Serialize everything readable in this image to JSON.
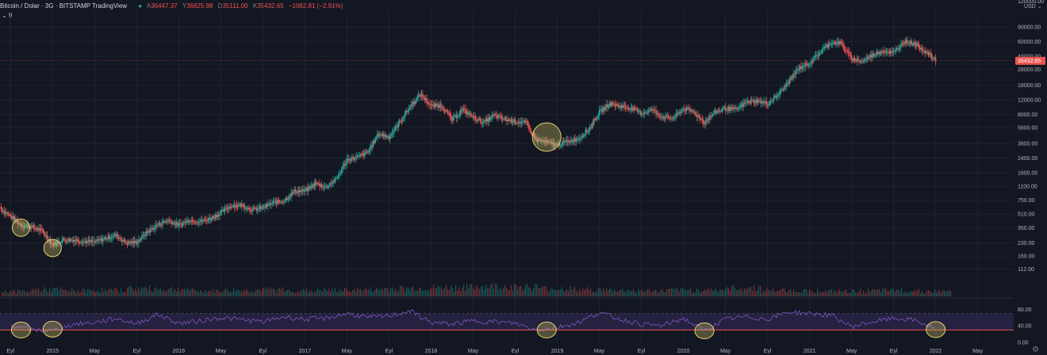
{
  "header": {
    "symbol": "Bitcoin / Dolar",
    "interval": "3G",
    "exchange": "BITSTAMP",
    "source": "TradingView",
    "open_label": "A",
    "open": "36447.37",
    "high_label": "Y",
    "high": "36825.98",
    "low_label": "D",
    "low": "35111.00",
    "close_label": "K",
    "close": "35432.65",
    "change": "−1062.81 (−2.91%)",
    "indicator_toggle": "⌄ 9"
  },
  "price_axis": {
    "scale": "log",
    "currency": "USD ⌄",
    "top_label": "120000.00",
    "ticks": [
      "90000.00",
      "60000.00",
      "40000.00",
      "28000.00",
      "18000.00",
      "12000.00",
      "8000.00",
      "5600.00",
      "3600.00",
      "2400.00",
      "1600.00",
      "1100.00",
      "750.00",
      "510.00",
      "350.00",
      "230.00",
      "160.00",
      "112.00"
    ],
    "last_price": "35432.65"
  },
  "rsi_axis": {
    "ticks": [
      "80.00",
      "40.00",
      "0.00"
    ],
    "overbought": 70,
    "oversold": 30
  },
  "time_axis": [
    "Eyl",
    "2015",
    "May",
    "Eyl",
    "2016",
    "May",
    "Eyl",
    "2017",
    "May",
    "Eyl",
    "2018",
    "May",
    "Eyl",
    "2019",
    "May",
    "Eyl",
    "2020",
    "May",
    "Eyl",
    "2021",
    "May",
    "Eyl",
    "2022",
    "May"
  ],
  "colors": {
    "background": "#131722",
    "up": "#26a69a",
    "down": "#ef5350",
    "grid": "#1f2330",
    "rsi_line": "#7e57c2",
    "rsi_band": "#2a2448",
    "rsi_level": "#ef5350",
    "highlight": "#e6d36a",
    "last_price_badge": "#ef5350"
  },
  "chart_data": {
    "type": "line",
    "title": "Bitcoin / Dolar",
    "xlabel": "",
    "ylabel": "USD",
    "y_scale": "log",
    "ylim": [
      85,
      140000
    ],
    "grid": true,
    "series": [
      {
        "kind": "candlestick_close",
        "x": [
          "2014-08",
          "2014-09",
          "2014-10",
          "2014-11",
          "2014-12",
          "2015-01",
          "2015-02",
          "2015-03",
          "2015-04",
          "2015-05",
          "2015-06",
          "2015-07",
          "2015-08",
          "2015-09",
          "2015-10",
          "2015-11",
          "2015-12",
          "2016-01",
          "2016-02",
          "2016-03",
          "2016-04",
          "2016-05",
          "2016-06",
          "2016-07",
          "2016-08",
          "2016-09",
          "2016-10",
          "2016-11",
          "2016-12",
          "2017-01",
          "2017-02",
          "2017-03",
          "2017-04",
          "2017-05",
          "2017-06",
          "2017-07",
          "2017-08",
          "2017-09",
          "2017-10",
          "2017-11",
          "2017-12",
          "2018-01",
          "2018-02",
          "2018-03",
          "2018-04",
          "2018-05",
          "2018-06",
          "2018-07",
          "2018-08",
          "2018-09",
          "2018-10",
          "2018-11",
          "2018-12",
          "2019-01",
          "2019-02",
          "2019-03",
          "2019-04",
          "2019-05",
          "2019-06",
          "2019-07",
          "2019-08",
          "2019-09",
          "2019-10",
          "2019-11",
          "2019-12",
          "2020-01",
          "2020-02",
          "2020-03",
          "2020-04",
          "2020-05",
          "2020-06",
          "2020-07",
          "2020-08",
          "2020-09",
          "2020-10",
          "2020-11",
          "2020-12",
          "2021-01",
          "2021-02",
          "2021-03",
          "2021-04",
          "2021-05",
          "2021-06",
          "2021-07",
          "2021-08",
          "2021-09",
          "2021-10",
          "2021-11",
          "2021-12",
          "2022-01"
        ],
        "values": [
          600,
          480,
          380,
          360,
          320,
          220,
          250,
          250,
          240,
          235,
          260,
          285,
          230,
          235,
          310,
          380,
          430,
          375,
          435,
          415,
          450,
          530,
          650,
          650,
          575,
          610,
          700,
          740,
          960,
          965,
          1190,
          1080,
          1350,
          2300,
          2450,
          2850,
          4700,
          4300,
          6400,
          10000,
          14000,
          10200,
          10300,
          6900,
          9200,
          7500,
          6400,
          7800,
          7000,
          6650,
          6350,
          4000,
          3700,
          3450,
          3800,
          4100,
          5300,
          8500,
          10800,
          10100,
          9600,
          8300,
          9200,
          7500,
          7200,
          9400,
          8600,
          6400,
          8600,
          9500,
          9150,
          11300,
          11700,
          10800,
          13800,
          19700,
          29000,
          33100,
          45200,
          58800,
          57700,
          37300,
          35000,
          41500,
          47100,
          43800,
          61300,
          57000,
          46300,
          35430
        ]
      },
      {
        "name": "RSI",
        "kind": "rsi",
        "x": [
          "2014-09",
          "2014-11",
          "2015-01",
          "2015-03",
          "2015-05",
          "2015-07",
          "2015-09",
          "2015-11",
          "2016-01",
          "2016-03",
          "2016-05",
          "2016-07",
          "2016-09",
          "2016-11",
          "2017-01",
          "2017-03",
          "2017-05",
          "2017-07",
          "2017-09",
          "2017-11",
          "2018-01",
          "2018-03",
          "2018-05",
          "2018-07",
          "2018-09",
          "2018-11",
          "2019-01",
          "2019-03",
          "2019-05",
          "2019-07",
          "2019-09",
          "2019-11",
          "2020-01",
          "2020-03",
          "2020-05",
          "2020-07",
          "2020-09",
          "2020-11",
          "2021-01",
          "2021-03",
          "2021-05",
          "2021-07",
          "2021-09",
          "2021-11",
          "2022-01"
        ],
        "values": [
          42,
          30,
          28,
          44,
          48,
          58,
          45,
          68,
          46,
          52,
          60,
          55,
          50,
          62,
          56,
          58,
          70,
          60,
          64,
          76,
          48,
          44,
          52,
          50,
          46,
          30,
          36,
          48,
          72,
          56,
          44,
          40,
          58,
          28,
          56,
          62,
          56,
          74,
          70,
          66,
          38,
          50,
          58,
          54,
          32
        ]
      }
    ],
    "volume": {
      "kind": "histogram",
      "relative_levels": [
        0.45,
        0.6,
        0.5,
        0.55,
        0.7,
        0.65,
        0.5,
        0.55,
        0.6,
        0.5,
        0.55,
        0.6,
        0.7,
        0.75,
        0.8,
        0.9,
        0.85,
        0.7,
        0.6,
        0.55,
        0.5,
        0.55,
        0.6,
        0.75,
        0.55,
        0.5,
        0.45,
        0.5,
        0.55,
        0.45
      ]
    },
    "annotations": [
      {
        "type": "ellipse",
        "x": "2014-10",
        "y": 350
      },
      {
        "type": "ellipse",
        "x": "2015-01",
        "y": 200
      },
      {
        "type": "ellipse",
        "x": "2018-12",
        "y": 4300
      },
      {
        "type": "ellipse_rsi",
        "x": "2014-10",
        "y": 30
      },
      {
        "type": "ellipse_rsi",
        "x": "2015-01",
        "y": 32
      },
      {
        "type": "ellipse_rsi",
        "x": "2018-12",
        "y": 30
      },
      {
        "type": "ellipse_rsi",
        "x": "2020-03",
        "y": 28
      },
      {
        "type": "ellipse_rsi",
        "x": "2022-01",
        "y": 31
      }
    ]
  }
}
